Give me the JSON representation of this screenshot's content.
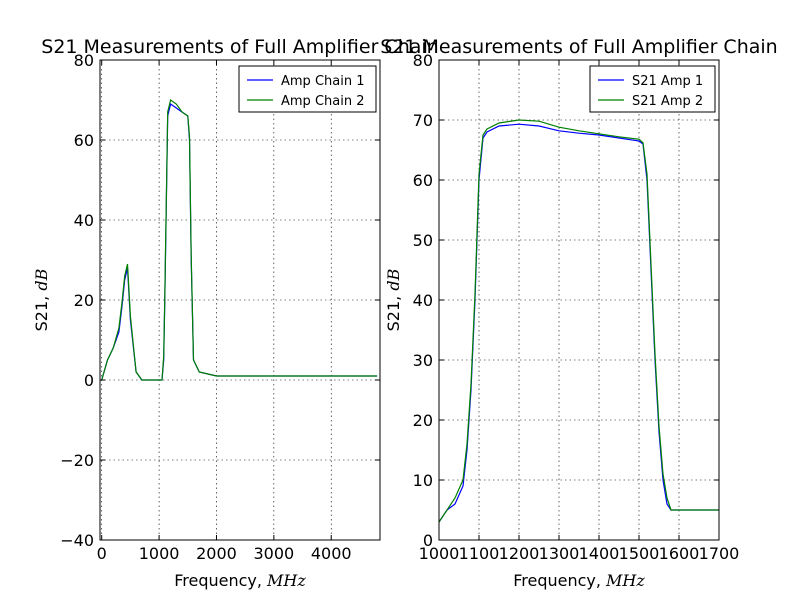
{
  "chart_data": [
    {
      "type": "line",
      "title": "S21 Measurements of Full Amplifier Chain",
      "xlabel_text": "Frequency, ",
      "xlabel_unit": "MHz",
      "ylabel_text": "S21, ",
      "ylabel_unit": "dB",
      "xlim": [
        -30,
        4850
      ],
      "ylim": [
        -40,
        80
      ],
      "xticks": [
        0,
        1000,
        2000,
        3000,
        4000
      ],
      "xtick_labels": [
        "0",
        "1000",
        "2000",
        "3000",
        "4000"
      ],
      "yticks": [
        -40,
        -20,
        0,
        20,
        40,
        60,
        80
      ],
      "ytick_labels": [
        "−40",
        "−20",
        "0",
        "20",
        "40",
        "60",
        "80"
      ],
      "grid": true,
      "legend_position": "top-right",
      "series": [
        {
          "name": "Amp Chain 1",
          "color": "#0000ff",
          "x": [
            0,
            100,
            200,
            300,
            350,
            400,
            450,
            500,
            600,
            700,
            800,
            900,
            1000,
            1050,
            1080,
            1100,
            1150,
            1200,
            1300,
            1400,
            1500,
            1530,
            1560,
            1600,
            1700,
            2000,
            2500,
            3000,
            3500,
            4000,
            4500,
            4800
          ],
          "y": [
            0,
            5,
            8,
            12,
            18,
            25,
            28,
            15,
            2,
            0,
            0,
            0,
            0,
            0,
            5,
            20,
            66,
            69,
            68,
            67,
            66,
            60,
            30,
            5,
            2,
            1,
            1,
            1,
            1,
            1,
            1,
            1
          ]
        },
        {
          "name": "Amp Chain 2",
          "color": "#008000",
          "x": [
            0,
            100,
            200,
            300,
            350,
            400,
            450,
            500,
            600,
            700,
            800,
            900,
            1000,
            1050,
            1080,
            1100,
            1150,
            1200,
            1300,
            1400,
            1500,
            1530,
            1560,
            1600,
            1700,
            2000,
            2500,
            3000,
            3500,
            4000,
            4500,
            4800
          ],
          "y": [
            0,
            5,
            8,
            13,
            19,
            26,
            29,
            16,
            2,
            0,
            0,
            0,
            0,
            0,
            6,
            21,
            67,
            70,
            69,
            67,
            66,
            61,
            31,
            5,
            2,
            1,
            1,
            1,
            1,
            1,
            1,
            1
          ]
        }
      ]
    },
    {
      "type": "line",
      "title": "S21 Measurements of Full Amplifier Chain",
      "xlabel_text": "Frequency, ",
      "xlabel_unit": "MHz",
      "ylabel_text": "S21, ",
      "ylabel_unit": "dB",
      "xlim": [
        1000,
        1700
      ],
      "ylim": [
        0,
        80
      ],
      "xticks": [
        1000,
        1100,
        1200,
        1300,
        1400,
        1500,
        1600,
        1700
      ],
      "xtick_labels": [
        "1000",
        "1100",
        "1200",
        "1300",
        "1400",
        "1500",
        "1600",
        "1700"
      ],
      "yticks": [
        0,
        10,
        20,
        30,
        40,
        50,
        60,
        70,
        80
      ],
      "ytick_labels": [
        "0",
        "10",
        "20",
        "30",
        "40",
        "50",
        "60",
        "70",
        "80"
      ],
      "grid": true,
      "legend_position": "top-right",
      "series": [
        {
          "name": "S21 Amp 1",
          "color": "#0000ff",
          "x": [
            1000,
            1020,
            1040,
            1060,
            1070,
            1080,
            1090,
            1100,
            1110,
            1120,
            1150,
            1200,
            1250,
            1300,
            1350,
            1400,
            1450,
            1500,
            1510,
            1520,
            1530,
            1540,
            1550,
            1560,
            1570,
            1580,
            1600,
            1650,
            1700
          ],
          "y": [
            3,
            5,
            6,
            9,
            15,
            25,
            40,
            60,
            67,
            68,
            69,
            69.3,
            69,
            68.2,
            67.8,
            67.5,
            67,
            66.5,
            66,
            60,
            45,
            30,
            18,
            10,
            6,
            5,
            5,
            5,
            5
          ]
        },
        {
          "name": "S21 Amp 2",
          "color": "#008000",
          "x": [
            1000,
            1020,
            1040,
            1060,
            1070,
            1080,
            1090,
            1100,
            1110,
            1120,
            1150,
            1200,
            1250,
            1300,
            1350,
            1400,
            1450,
            1500,
            1510,
            1520,
            1530,
            1540,
            1550,
            1560,
            1570,
            1580,
            1600,
            1650,
            1700
          ],
          "y": [
            3,
            5,
            7,
            10,
            16,
            26,
            41,
            61,
            67.5,
            68.5,
            69.5,
            70,
            69.8,
            68.8,
            68.2,
            67.7,
            67.2,
            66.8,
            66.2,
            61,
            46,
            31,
            19,
            11,
            7,
            5,
            5,
            5,
            5
          ]
        }
      ]
    }
  ]
}
